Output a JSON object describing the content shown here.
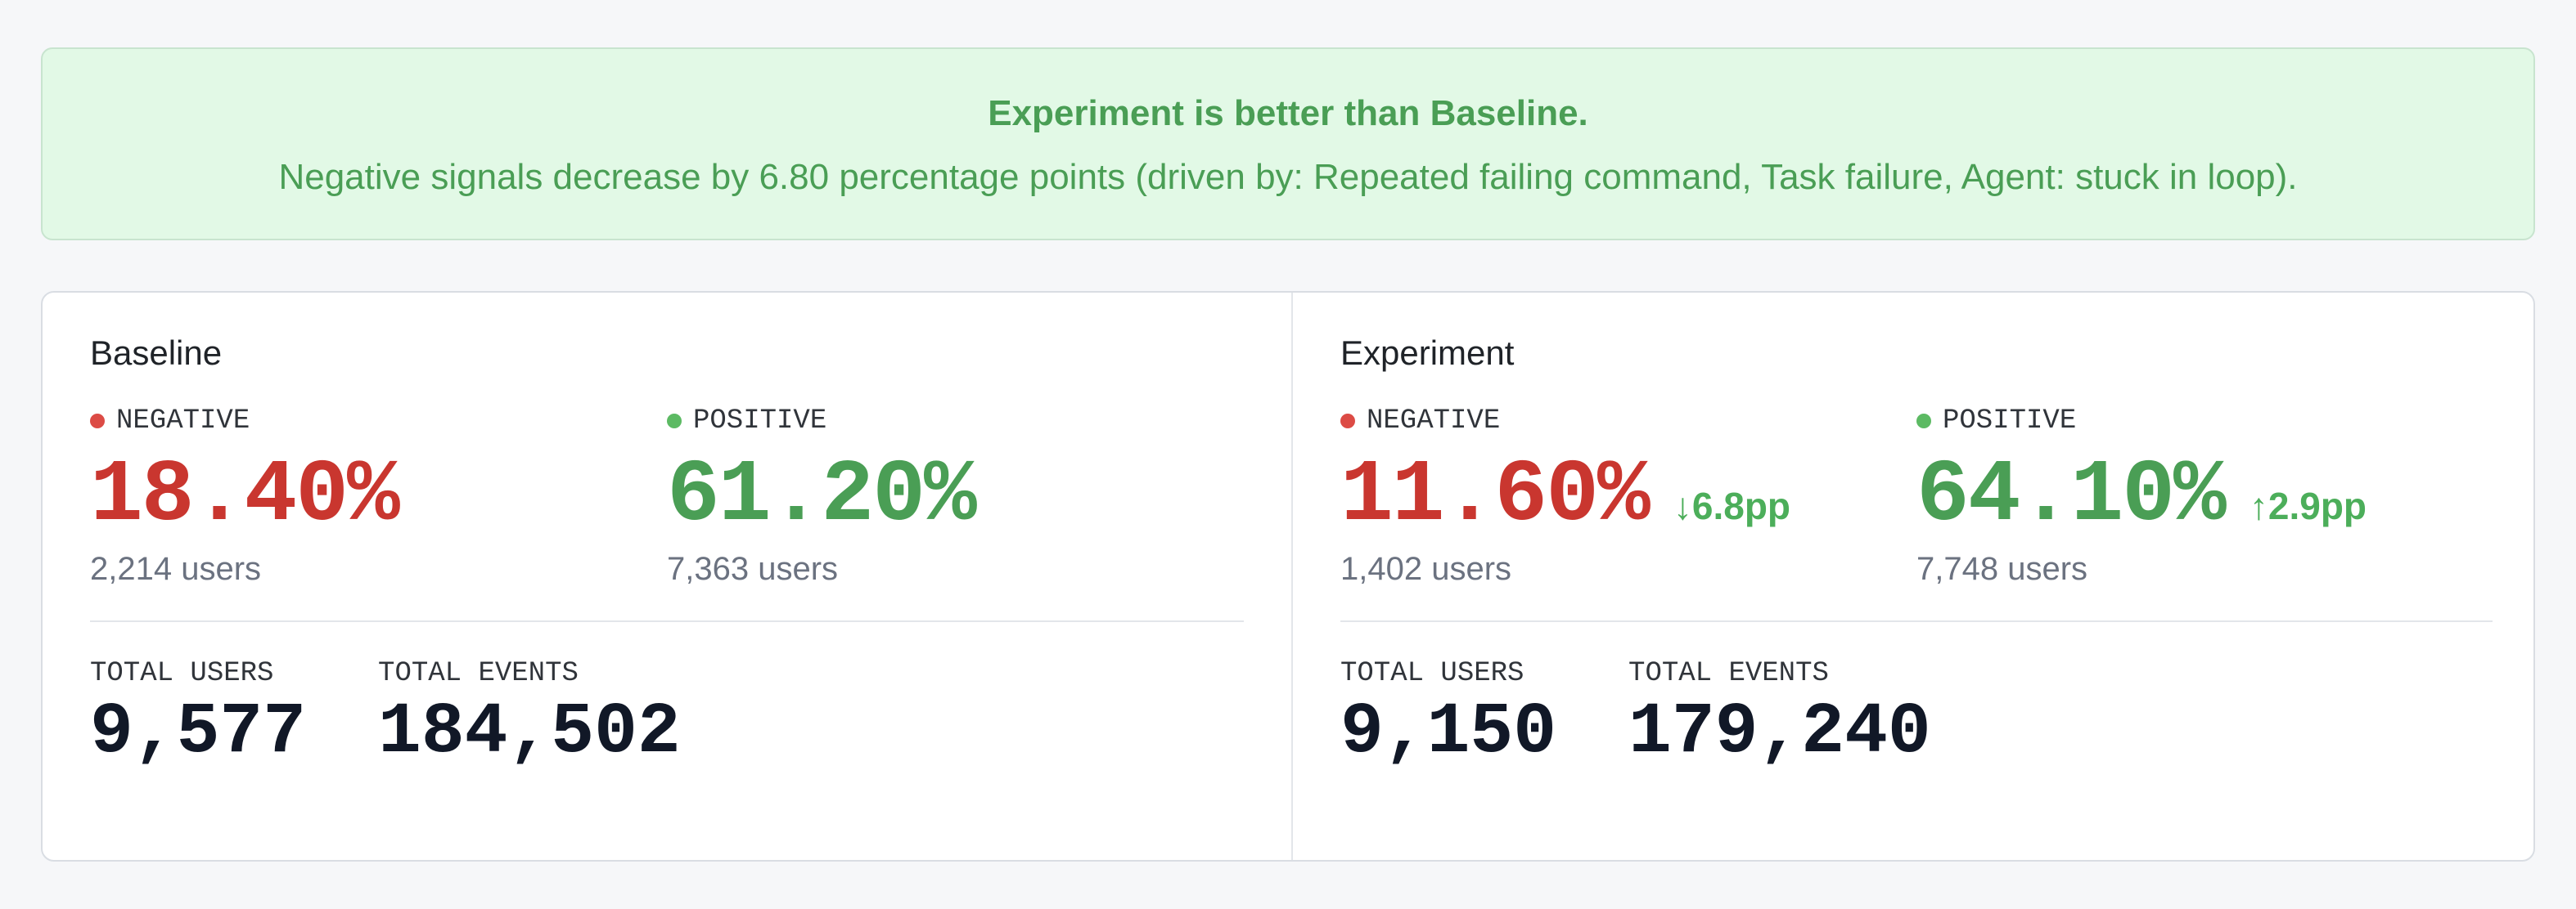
{
  "banner": {
    "title": "Experiment is better than Baseline.",
    "message": "Negative signals decrease by 6.80 percentage points (driven by: Repeated failing command, Task failure, Agent: stuck in loop)."
  },
  "panels": [
    {
      "title": "Baseline",
      "metrics": [
        {
          "label": "NEGATIVE",
          "value": "18.40%",
          "users": "2,214 users"
        },
        {
          "label": "POSITIVE",
          "value": "61.20%",
          "users": "7,363 users"
        }
      ],
      "totals": [
        {
          "label": "TOTAL USERS",
          "value": "9,577"
        },
        {
          "label": "TOTAL EVENTS",
          "value": "184,502"
        }
      ]
    },
    {
      "title": "Experiment",
      "metrics": [
        {
          "label": "NEGATIVE",
          "value": "11.60%",
          "delta": "↓6.8pp",
          "users": "1,402 users"
        },
        {
          "label": "POSITIVE",
          "value": "64.10%",
          "delta": "↑2.9pp",
          "users": "7,748 users"
        }
      ],
      "totals": [
        {
          "label": "TOTAL USERS",
          "value": "9,150"
        },
        {
          "label": "TOTAL EVENTS",
          "value": "179,240"
        }
      ]
    }
  ]
}
